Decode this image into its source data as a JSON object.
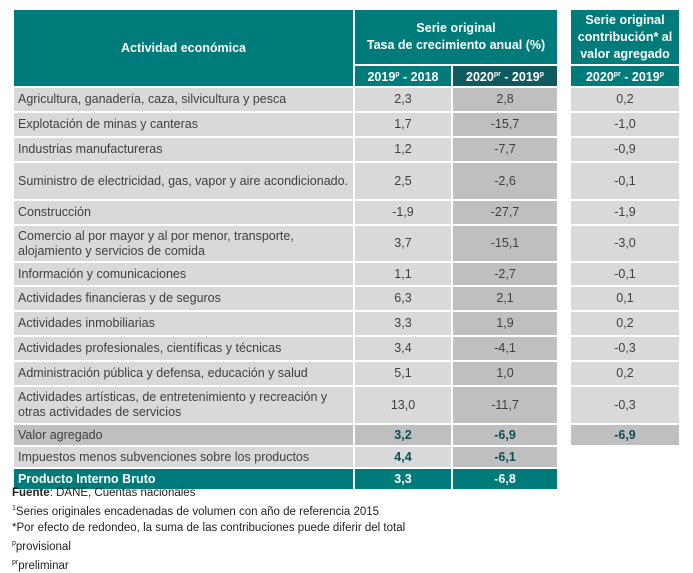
{
  "header": {
    "activity": "Actividad económica",
    "growth_title_1": "Serie original",
    "growth_title_2": "Tasa de crecimiento anual (%)",
    "col1": "2019",
    "col1_sup": "p",
    "col1_rest": " - 2018",
    "col2": "2020",
    "col2_sup": "pr",
    "col2_rest": " - 2019",
    "col2_sup2": "p",
    "contrib_title": "Serie original contribución* al valor agregado",
    "col3": "2020",
    "col3_sup": "pr",
    "col3_rest": " - 2019",
    "col3_sup2": "p"
  },
  "rows": [
    {
      "label": "Agricultura, ganadería, caza, silvicultura y pesca",
      "v1": "2,3",
      "v2": "2,8",
      "c": "0,2"
    },
    {
      "label": "Explotación de minas y canteras",
      "v1": "1,7",
      "v2": "-15,7",
      "c": "-1,0"
    },
    {
      "label": "Industrias manufactureras",
      "v1": "1,2",
      "v2": "-7,7",
      "c": "-0,9"
    },
    {
      "label": "Suministro de electricidad, gas, vapor y aire acondicionado.",
      "v1": "2,5",
      "v2": "-2,6",
      "c": "-0,1"
    },
    {
      "label": "Construcción",
      "v1": "-1,9",
      "v2": "-27,7",
      "c": "-1,9"
    },
    {
      "label": "Comercio al por mayor y al por menor, transporte, alojamiento y servicios de comida",
      "v1": "3,7",
      "v2": "-15,1",
      "c": "-3,0"
    },
    {
      "label": "Información y comunicaciones",
      "v1": "1,1",
      "v2": "-2,7",
      "c": "-0,1"
    },
    {
      "label": "Actividades financieras y de seguros",
      "v1": "6,3",
      "v2": "2,1",
      "c": "0,1"
    },
    {
      "label": "Actividades inmobiliarias",
      "v1": "3,3",
      "v2": "1,9",
      "c": "0,2"
    },
    {
      "label": "Actividades profesionales, científicas y técnicas",
      "v1": "3,4",
      "v2": "-4,1",
      "c": "-0,3"
    },
    {
      "label": "Administración pública y defensa, educación y salud",
      "v1": "5,1",
      "v2": "1,0",
      "c": "0,2"
    },
    {
      "label": "Actividades artísticas, de entretenimiento y recreación y otras actividades de servicios",
      "v1": "13,0",
      "v2": "-11,7",
      "c": "-0,3"
    }
  ],
  "valor_agregado": {
    "label": "Valor agregado",
    "v1": "3,2",
    "v2": "-6,9",
    "c": "-6,9"
  },
  "impuestos": {
    "label": "Impuestos menos subvenciones sobre los productos",
    "v1": "4,4",
    "v2": "-6,1"
  },
  "pib": {
    "label": "Producto Interno Bruto",
    "v1": "3,3",
    "v2": "-6,8"
  },
  "footer": {
    "source_label": "Fuente",
    "source_text": ": DANE, Cuentas nacionales",
    "note1_sup": "1",
    "note1": "Series originales encadenadas de volumen con año de referencia 2015",
    "note2": "*Por efecto de redondeo, la suma de las contribuciones puede diferir del total",
    "note3_sup": "p",
    "note3": "provisional",
    "note4_sup": "pr",
    "note4": "preliminar"
  },
  "colors": {
    "teal": "#007b7b",
    "dark_teal": "#0e5a5f",
    "row_bg": "#d9d9d9",
    "highlight_bg": "#bfbfbf"
  }
}
